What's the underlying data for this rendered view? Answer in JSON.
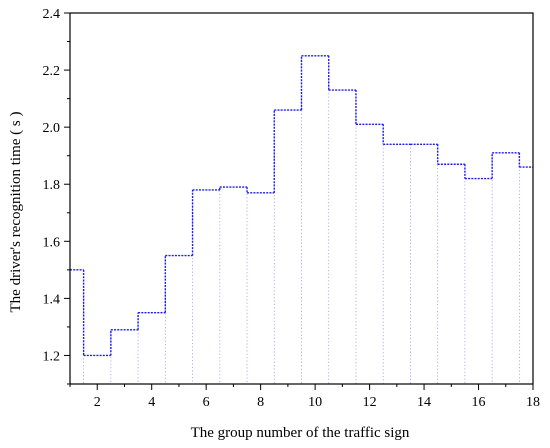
{
  "chart_data": {
    "type": "line",
    "subtype": "step",
    "xlabel": "The group number of the traffic sign",
    "ylabel": "The driver's recognition time ( s )",
    "xlim": [
      1,
      18
    ],
    "ylim": [
      1.1,
      2.4
    ],
    "xticks": [
      2,
      4,
      6,
      8,
      10,
      12,
      14,
      16,
      18
    ],
    "yticks": [
      1.2,
      1.4,
      1.6,
      1.8,
      2.0,
      2.2,
      2.4
    ],
    "ytick_labels": [
      "1.2",
      "1.4",
      "1.6",
      "1.8",
      "2.0",
      "2.2",
      "2.4"
    ],
    "series": [
      {
        "x": [
          1,
          2,
          3,
          4,
          5,
          6,
          7,
          8,
          9,
          10,
          11,
          12,
          13,
          14,
          15,
          16,
          17,
          18
        ],
        "y": [
          1.5,
          1.2,
          1.29,
          1.35,
          1.55,
          1.78,
          1.79,
          1.77,
          2.06,
          2.25,
          2.13,
          2.01,
          1.94,
          1.94,
          1.87,
          1.82,
          1.91,
          1.86
        ],
        "color": "#1a1aff"
      }
    ],
    "grid": false,
    "legend": "none"
  }
}
